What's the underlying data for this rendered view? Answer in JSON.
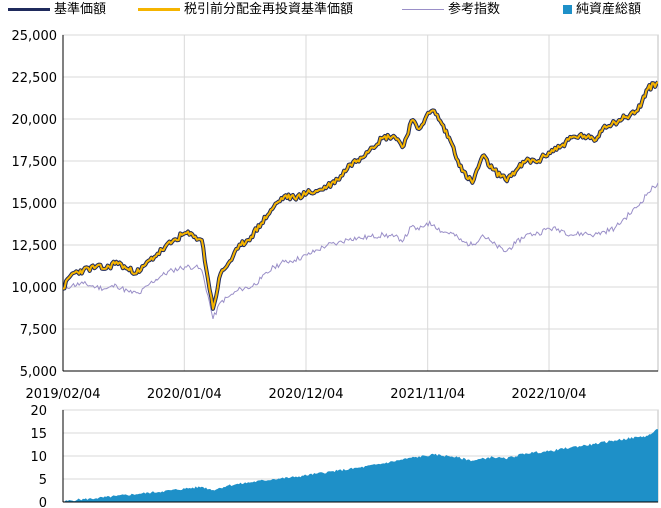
{
  "legend": {
    "nav": "基準価額",
    "reinvested": "税引前分配金再投資基準価額",
    "reference": "参考指数",
    "net_assets": "純資産総額"
  },
  "colors": {
    "nav": "#1f2a5c",
    "reinvested": "#f5b400",
    "reference": "#9a8fc8",
    "net_assets": "#1e90c8"
  },
  "chart_data": [
    {
      "type": "line",
      "ylim": [
        5000,
        25000
      ],
      "yticks": [
        "5,000",
        "7,500",
        "10,000",
        "12,500",
        "15,000",
        "17,500",
        "20,000",
        "22,500",
        "25,000"
      ],
      "xticks": [
        "2019/02/04",
        "2020/01/04",
        "2020/12/04",
        "2021/11/04",
        "2022/10/04"
      ],
      "x_start": "2019/02/04",
      "x_end": "2023/07/31",
      "series": [
        {
          "name": "基準価額",
          "points": [
            [
              "2019/02/04",
              9900
            ],
            [
              "2019/03/01",
              10800
            ],
            [
              "2019/04/01",
              11000
            ],
            [
              "2019/05/06",
              11200
            ],
            [
              "2019/06/03",
              11100
            ],
            [
              "2019/07/01",
              11500
            ],
            [
              "2019/08/05",
              11000
            ],
            [
              "2019/09/02",
              10900
            ],
            [
              "2019/10/01",
              11600
            ],
            [
              "2019/11/04",
              12200
            ],
            [
              "2019/12/02",
              12700
            ],
            [
              "2020/01/06",
              13200
            ],
            [
              "2020/02/03",
              13000
            ],
            [
              "2020/02/21",
              12800
            ],
            [
              "2020/03/09",
              10500
            ],
            [
              "2020/03/23",
              8700
            ],
            [
              "2020/04/13",
              10800
            ],
            [
              "2020/05/04",
              11400
            ],
            [
              "2020/06/08",
              12500
            ],
            [
              "2020/07/06",
              13000
            ],
            [
              "2020/08/03",
              13800
            ],
            [
              "2020/09/07",
              14800
            ],
            [
              "2020/10/05",
              15400
            ],
            [
              "2020/11/02",
              15300
            ],
            [
              "2020/12/07",
              15600
            ],
            [
              "2021/01/04",
              15700
            ],
            [
              "2021/02/01",
              16000
            ],
            [
              "2021/03/01",
              16400
            ],
            [
              "2021/04/05",
              17300
            ],
            [
              "2021/05/03",
              17700
            ],
            [
              "2021/06/01",
              18300
            ],
            [
              "2021/07/05",
              18900
            ],
            [
              "2021/08/02",
              19000
            ],
            [
              "2021/08/30",
              18400
            ],
            [
              "2021/09/20",
              19900
            ],
            [
              "2021/10/11",
              19400
            ],
            [
              "2021/11/01",
              20200
            ],
            [
              "2021/11/22",
              20500
            ],
            [
              "2021/12/13",
              19700
            ],
            [
              "2022/01/10",
              18500
            ],
            [
              "2022/02/07",
              16900
            ],
            [
              "2022/03/07",
              16200
            ],
            [
              "2022/04/04",
              17800
            ],
            [
              "2022/05/02",
              17000
            ],
            [
              "2022/06/06",
              16400
            ],
            [
              "2022/07/04",
              16900
            ],
            [
              "2022/08/01",
              17500
            ],
            [
              "2022/09/05",
              17500
            ],
            [
              "2022/10/03",
              18000
            ],
            [
              "2022/11/07",
              18400
            ],
            [
              "2022/12/05",
              18900
            ],
            [
              "2023/01/09",
              19000
            ],
            [
              "2023/02/06",
              18700
            ],
            [
              "2023/03/06",
              19600
            ],
            [
              "2023/04/03",
              19800
            ],
            [
              "2023/05/01",
              20100
            ],
            [
              "2023/06/05",
              20500
            ],
            [
              "2023/07/03",
              21800
            ],
            [
              "2023/07/31",
              22200
            ]
          ]
        },
        {
          "name": "参考指数",
          "points": [
            [
              "2019/02/04",
              9900
            ],
            [
              "2019/03/01",
              10100
            ],
            [
              "2019/04/01",
              10200
            ],
            [
              "2019/05/06",
              10000
            ],
            [
              "2019/06/03",
              9900
            ],
            [
              "2019/07/01",
              10100
            ],
            [
              "2019/08/05",
              9700
            ],
            [
              "2019/09/02",
              9600
            ],
            [
              "2019/10/01",
              10200
            ],
            [
              "2019/11/04",
              10700
            ],
            [
              "2019/12/02",
              11000
            ],
            [
              "2020/01/06",
              11200
            ],
            [
              "2020/02/03",
              11200
            ],
            [
              "2020/02/21",
              11000
            ],
            [
              "2020/03/09",
              9500
            ],
            [
              "2020/03/23",
              8100
            ],
            [
              "2020/04/13",
              9100
            ],
            [
              "2020/05/04",
              9400
            ],
            [
              "2020/06/08",
              9900
            ],
            [
              "2020/07/06",
              10000
            ],
            [
              "2020/08/03",
              10500
            ],
            [
              "2020/09/07",
              11200
            ],
            [
              "2020/10/05",
              11500
            ],
            [
              "2020/11/02",
              11600
            ],
            [
              "2020/12/07",
              11900
            ],
            [
              "2021/01/04",
              12200
            ],
            [
              "2021/02/01",
              12500
            ],
            [
              "2021/03/01",
              12600
            ],
            [
              "2021/04/05",
              12900
            ],
            [
              "2021/05/03",
              12900
            ],
            [
              "2021/06/01",
              13000
            ],
            [
              "2021/07/05",
              13100
            ],
            [
              "2021/08/02",
              13000
            ],
            [
              "2021/08/30",
              12800
            ],
            [
              "2021/09/20",
              13600
            ],
            [
              "2021/10/11",
              13400
            ],
            [
              "2021/11/01",
              13800
            ],
            [
              "2021/11/22",
              13700
            ],
            [
              "2021/12/13",
              13300
            ],
            [
              "2022/01/10",
              13200
            ],
            [
              "2022/02/07",
              12700
            ],
            [
              "2022/03/07",
              12500
            ],
            [
              "2022/04/04",
              13100
            ],
            [
              "2022/05/02",
              12600
            ],
            [
              "2022/06/06",
              12100
            ],
            [
              "2022/07/04",
              12600
            ],
            [
              "2022/08/01",
              13100
            ],
            [
              "2022/09/05",
              13200
            ],
            [
              "2022/10/03",
              13500
            ],
            [
              "2022/11/07",
              13400
            ],
            [
              "2022/12/05",
              13100
            ],
            [
              "2023/01/09",
              13200
            ],
            [
              "2023/02/06",
              13100
            ],
            [
              "2023/03/06",
              13300
            ],
            [
              "2023/04/03",
              13500
            ],
            [
              "2023/05/01",
              14100
            ],
            [
              "2023/06/05",
              14800
            ],
            [
              "2023/07/03",
              15600
            ],
            [
              "2023/07/31",
              16200
            ]
          ]
        }
      ]
    },
    {
      "type": "area",
      "name": "純資産総額",
      "ylim": [
        0,
        20
      ],
      "yticks": [
        "0",
        "5",
        "10",
        "15",
        "20"
      ],
      "points": [
        [
          "2019/02/04",
          0.1
        ],
        [
          "2019/03/15",
          0.5
        ],
        [
          "2019/05/06",
          0.8
        ],
        [
          "2019/07/01",
          1.3
        ],
        [
          "2019/09/02",
          1.8
        ],
        [
          "2019/11/04",
          2.3
        ],
        [
          "2020/01/06",
          2.9
        ],
        [
          "2020/02/21",
          3.3
        ],
        [
          "2020/03/23",
          2.6
        ],
        [
          "2020/05/04",
          3.6
        ],
        [
          "2020/07/06",
          4.3
        ],
        [
          "2020/09/07",
          5.0
        ],
        [
          "2020/11/02",
          5.4
        ],
        [
          "2021/01/04",
          6.2
        ],
        [
          "2021/03/01",
          6.8
        ],
        [
          "2021/05/03",
          7.5
        ],
        [
          "2021/07/05",
          8.4
        ],
        [
          "2021/09/20",
          9.6
        ],
        [
          "2021/11/22",
          10.3
        ],
        [
          "2022/01/10",
          9.9
        ],
        [
          "2022/03/07",
          9.0
        ],
        [
          "2022/05/02",
          9.8
        ],
        [
          "2022/06/06",
          9.4
        ],
        [
          "2022/08/01",
          10.6
        ],
        [
          "2022/10/03",
          11.0
        ],
        [
          "2022/12/05",
          11.9
        ],
        [
          "2023/02/06",
          12.6
        ],
        [
          "2023/04/03",
          13.4
        ],
        [
          "2023/06/05",
          14.1
        ],
        [
          "2023/07/03",
          14.4
        ],
        [
          "2023/07/31",
          15.8
        ]
      ]
    }
  ]
}
